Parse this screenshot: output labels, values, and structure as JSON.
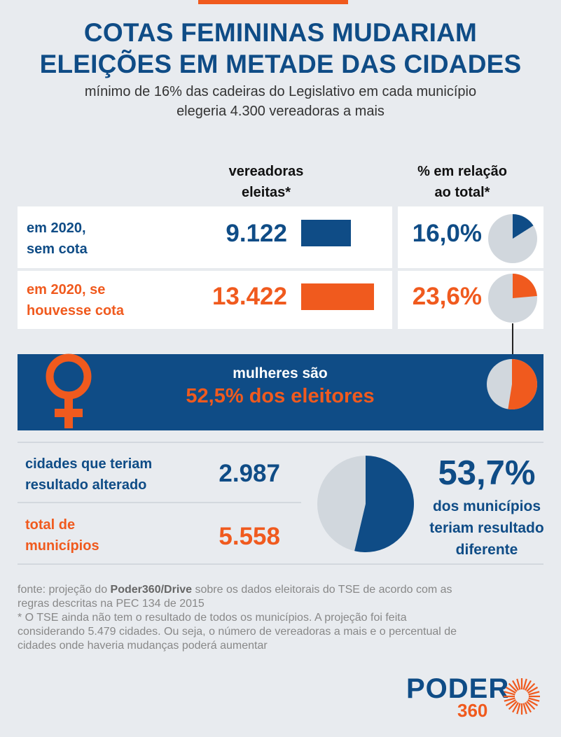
{
  "header": {
    "title_line1": "COTAS FEMININAS MUDARIAM",
    "title_line2": "ELEIÇÕES EM METADE DAS CIDADES",
    "subtitle_line1": "mínimo de 16% das cadeiras do Legislativo em cada município",
    "subtitle_line2": "elegeria 4.300 vereadoras a mais"
  },
  "columns": {
    "col1_line1": "vereadoras",
    "col1_line2": "eleitas*",
    "col2_line1": "% em relação",
    "col2_line2": "ao total*"
  },
  "rows": [
    {
      "label_line1": "em 2020,",
      "label_line2": "sem cota",
      "value_text": "9.122",
      "pct_text": "16,0%"
    },
    {
      "label_line1": "em 2020, se",
      "label_line2": "houvesse cota",
      "value_text": "13.422",
      "pct_text": "23,6%"
    }
  ],
  "band": {
    "line1": "mulheres são",
    "line2": "52,5% dos eleitores"
  },
  "cities": {
    "row1_line1": "cidades que teriam",
    "row1_line2": "resultado alterado",
    "row1_value": "2.987",
    "row2_line1": "total de",
    "row2_line2": "municípios",
    "row2_value": "5.558",
    "pct": "53,7%",
    "desc_line1": "dos municípios",
    "desc_line2": "teriam resultado",
    "desc_line3": "diferente"
  },
  "footer": {
    "line1_pre": "fonte: projeção do ",
    "line1_bold": "Poder360/Drive",
    "line1_post": " sobre os dados eleitorais do TSE de acordo com as",
    "line2": "regras descritas na PEC 134 de 2015",
    "line3": "* O TSE ainda não tem o resultado de todos os municípios. A projeção foi feita",
    "line4": "considerando 5.479 cidades. Ou seja, o número de vereadoras a mais e o percentual de",
    "line5": "cidades onde haveria mudanças poderá aumentar"
  },
  "logo": {
    "name": "PODER",
    "sub": "360"
  },
  "colors": {
    "navy": "#0f4c86",
    "orange": "#f05a1e",
    "pie_bg": "#d1d7dd",
    "background": "#e8ebef"
  },
  "chart_data": [
    {
      "type": "bar",
      "categories": [
        "em 2020, sem cota",
        "em 2020, se houvesse cota"
      ],
      "values": [
        9122,
        13422
      ]
    },
    {
      "type": "pie",
      "categories": [
        "em 2020, sem cota",
        "em 2020, se houvesse cota"
      ],
      "values": [
        16.0,
        23.6
      ]
    },
    {
      "type": "pie",
      "label": "mulheres são 52,5% dos eleitores",
      "values": [
        52.5
      ]
    },
    {
      "type": "pie",
      "label": "53,7% dos municípios teriam resultado diferente",
      "values": [
        53.7
      ]
    }
  ]
}
